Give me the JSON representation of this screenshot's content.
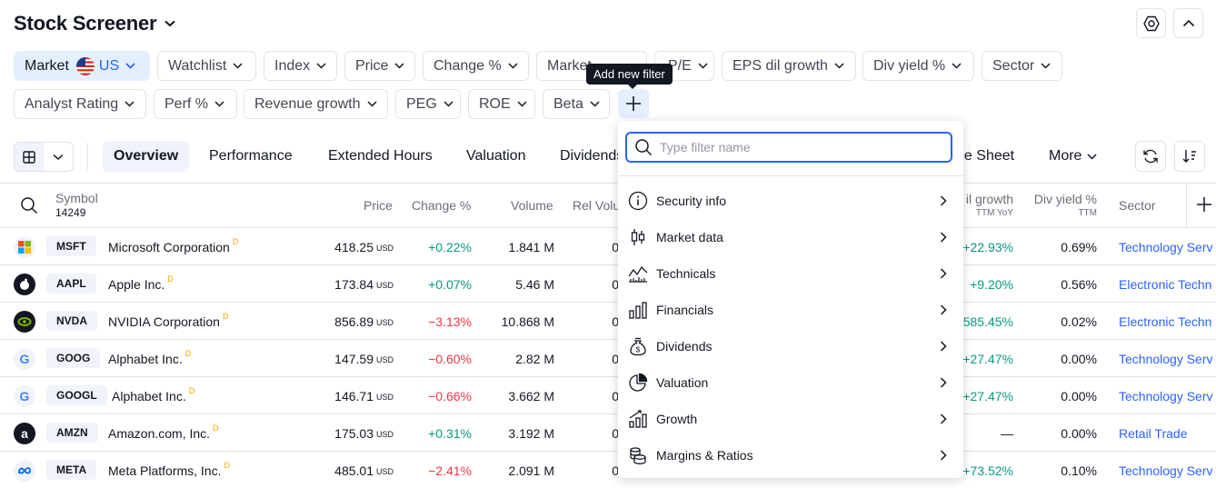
{
  "header": {
    "title": "Stock Screener"
  },
  "filters": {
    "market_label": "Market",
    "market_value": "US",
    "row1": [
      "Watchlist",
      "Index",
      "Price",
      "Change %",
      "Market",
      "P/E",
      "EPS dil growth",
      "Div yield %",
      "Sector"
    ],
    "row2": [
      "Analyst Rating",
      "Perf %",
      "Revenue growth",
      "PEG",
      "ROE",
      "Beta"
    ],
    "add_tooltip": "Add new filter"
  },
  "tabs": [
    "Overview",
    "Performance",
    "Extended Hours",
    "Valuation",
    "Dividends",
    "Balance Sheet",
    "More"
  ],
  "columns": {
    "symbol": "Symbol",
    "symbol_count": "14249",
    "price": "Price",
    "change": "Change %",
    "volume": "Volume",
    "rel_volume": "Rel Volu",
    "eps_growth": "il growth",
    "eps_growth_sub": "TTM YoY",
    "div_yield": "Div yield %",
    "div_yield_sub": "TTM",
    "sector": "Sector"
  },
  "rows": [
    {
      "ticker": "MSFT",
      "company": "Microsoft Corporation",
      "d": "D",
      "price": "418.25",
      "cur": "USD",
      "change": "+0.22%",
      "dir": "pos",
      "volume": "1.841 M",
      "rel": "0",
      "eps": "+22.93%",
      "eps_dir": "pos",
      "div": "0.69%",
      "sector": "Technology Serv"
    },
    {
      "ticker": "AAPL",
      "company": "Apple Inc.",
      "d": "D",
      "price": "173.84",
      "cur": "USD",
      "change": "+0.07%",
      "dir": "pos",
      "volume": "5.46 M",
      "rel": "0",
      "eps": "+9.20%",
      "eps_dir": "pos",
      "div": "0.56%",
      "sector": "Electronic Techn"
    },
    {
      "ticker": "NVDA",
      "company": "NVIDIA Corporation",
      "d": "D",
      "price": "856.89",
      "cur": "USD",
      "change": "−3.13%",
      "dir": "neg",
      "volume": "10.868 M",
      "rel": "0",
      "eps": "585.45%",
      "eps_dir": "pos",
      "div": "0.02%",
      "sector": "Electronic Techn"
    },
    {
      "ticker": "GOOG",
      "company": "Alphabet Inc.",
      "d": "D",
      "price": "147.59",
      "cur": "USD",
      "change": "−0.60%",
      "dir": "neg",
      "volume": "2.82 M",
      "rel": "0",
      "eps": "+27.47%",
      "eps_dir": "pos",
      "div": "0.00%",
      "sector": "Technology Serv"
    },
    {
      "ticker": "GOOGL",
      "company": "Alphabet Inc.",
      "d": "D",
      "price": "146.71",
      "cur": "USD",
      "change": "−0.66%",
      "dir": "neg",
      "volume": "3.662 M",
      "rel": "0",
      "eps": "+27.47%",
      "eps_dir": "pos",
      "div": "0.00%",
      "sector": "Technology Serv"
    },
    {
      "ticker": "AMZN",
      "company": "Amazon.com, Inc.",
      "d": "D",
      "price": "175.03",
      "cur": "USD",
      "change": "+0.31%",
      "dir": "pos",
      "volume": "3.192 M",
      "rel": "0",
      "eps": "—",
      "eps_dir": "none",
      "div": "0.00%",
      "sector": "Retail Trade"
    },
    {
      "ticker": "META",
      "company": "Meta Platforms, Inc.",
      "d": "D",
      "price": "485.01",
      "cur": "USD",
      "change": "−2.41%",
      "dir": "neg",
      "volume": "2.091 M",
      "rel": "0",
      "eps": "+73.52%",
      "eps_dir": "pos",
      "div": "0.10%",
      "sector": "Technology Serv"
    }
  ],
  "dropdown": {
    "placeholder": "Type filter name",
    "items": [
      "Security info",
      "Market data",
      "Technicals",
      "Financials",
      "Dividends",
      "Valuation",
      "Growth",
      "Margins & Ratios"
    ]
  },
  "colors": {
    "accent": "#2962ff",
    "positive": "#089981",
    "negative": "#f23645",
    "chip_selected_bg": "#e3effd"
  }
}
